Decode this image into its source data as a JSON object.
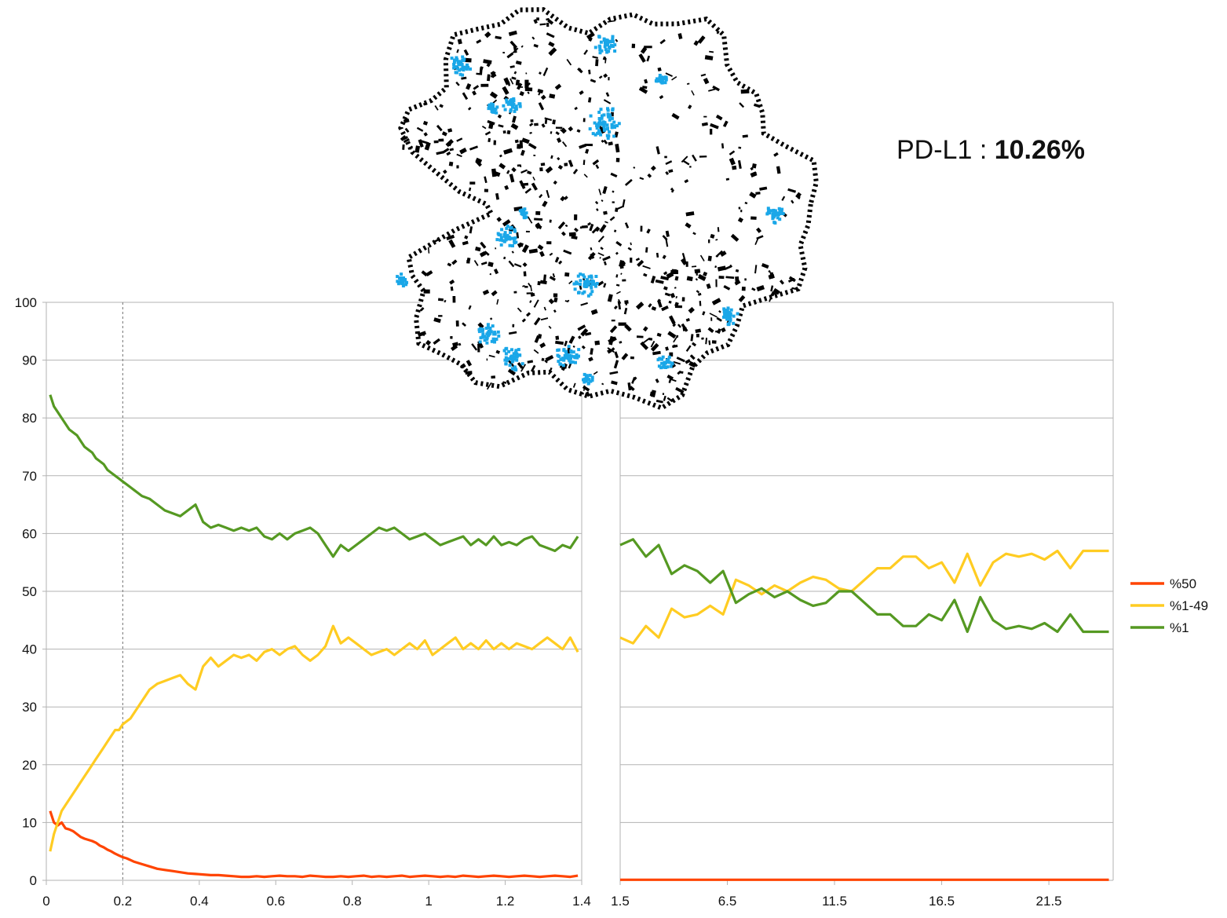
{
  "annotation": {
    "label": "PD-L1 :",
    "value": "10.26%"
  },
  "image": {
    "subject": "tissue-section-thumbnail",
    "colors": {
      "tissue": "#000000",
      "positive": "#1aa7e8"
    }
  },
  "colors": {
    "p50": "#ff4400",
    "p1_49": "#ffcc22",
    "p1": "#559922",
    "grid": "#b3b3b3",
    "axis": "#b3b3b3",
    "refline": "#888888"
  },
  "legend": {
    "placement": "right",
    "items": [
      "%50",
      "%1-49",
      "%1"
    ]
  },
  "chart_data": [
    {
      "type": "line",
      "panel": "left",
      "grid": true,
      "xlim": [
        0,
        1.4
      ],
      "ylim": [
        0,
        100
      ],
      "xticks": [
        "0",
        "0.2",
        "0.4",
        "0.6",
        "0.8",
        "1",
        "1.2",
        "1.4"
      ],
      "xtick_values": [
        0,
        0.2,
        0.4,
        0.6,
        0.8,
        1,
        1.2,
        1.4
      ],
      "yticks": [
        "0",
        "10",
        "20",
        "30",
        "40",
        "50",
        "60",
        "70",
        "80",
        "90",
        "100"
      ],
      "ytick_values": [
        0,
        10,
        20,
        30,
        40,
        50,
        60,
        70,
        80,
        90,
        100
      ],
      "reference_line_x": 0.2,
      "x": [
        0.01,
        0.02,
        0.03,
        0.04,
        0.05,
        0.06,
        0.07,
        0.08,
        0.09,
        0.1,
        0.11,
        0.12,
        0.13,
        0.14,
        0.15,
        0.16,
        0.17,
        0.18,
        0.19,
        0.2,
        0.21,
        0.22,
        0.23,
        0.24,
        0.25,
        0.27,
        0.29,
        0.31,
        0.33,
        0.35,
        0.37,
        0.39,
        0.41,
        0.43,
        0.45,
        0.47,
        0.49,
        0.51,
        0.53,
        0.55,
        0.57,
        0.59,
        0.61,
        0.63,
        0.65,
        0.67,
        0.69,
        0.71,
        0.73,
        0.75,
        0.77,
        0.79,
        0.81,
        0.83,
        0.85,
        0.87,
        0.89,
        0.91,
        0.93,
        0.95,
        0.97,
        0.99,
        1.01,
        1.03,
        1.05,
        1.07,
        1.09,
        1.11,
        1.13,
        1.15,
        1.17,
        1.19,
        1.21,
        1.23,
        1.25,
        1.27,
        1.29,
        1.31,
        1.33,
        1.35,
        1.37,
        1.39
      ],
      "series": [
        {
          "name": "%50",
          "color": "#ff4400",
          "values": [
            12,
            10,
            9.5,
            10,
            9,
            8.8,
            8.5,
            8,
            7.5,
            7.2,
            7,
            6.8,
            6.5,
            6,
            5.7,
            5.3,
            5,
            4.6,
            4.3,
            4,
            3.8,
            3.5,
            3.2,
            3,
            2.8,
            2.4,
            2,
            1.8,
            1.6,
            1.4,
            1.2,
            1.1,
            1,
            0.9,
            0.9,
            0.8,
            0.7,
            0.6,
            0.6,
            0.7,
            0.6,
            0.7,
            0.8,
            0.7,
            0.7,
            0.6,
            0.8,
            0.7,
            0.6,
            0.6,
            0.7,
            0.6,
            0.7,
            0.8,
            0.6,
            0.7,
            0.6,
            0.7,
            0.8,
            0.6,
            0.7,
            0.8,
            0.7,
            0.6,
            0.7,
            0.6,
            0.8,
            0.7,
            0.6,
            0.7,
            0.8,
            0.7,
            0.6,
            0.7,
            0.8,
            0.7,
            0.6,
            0.7,
            0.8,
            0.7,
            0.6,
            0.8
          ]
        },
        {
          "name": "%1-49",
          "color": "#ffcc22",
          "values": [
            5,
            8,
            10,
            12,
            13,
            14,
            15,
            16,
            17,
            18,
            19,
            20,
            21,
            22,
            23,
            24,
            25,
            26,
            26,
            27,
            27.5,
            28,
            29,
            30,
            31,
            33,
            34,
            34.5,
            35,
            35.5,
            34,
            33,
            37,
            38.5,
            37,
            38,
            39,
            38.5,
            39,
            38,
            39.5,
            40,
            39,
            40,
            40.5,
            39,
            38,
            39,
            40.5,
            44,
            41,
            42,
            41,
            40,
            39,
            39.5,
            40,
            39,
            40,
            41,
            40,
            41.5,
            39,
            40,
            41,
            42,
            40,
            41,
            40,
            41.5,
            40,
            41,
            40,
            41,
            40.5,
            40,
            41,
            42,
            41,
            40,
            42,
            39.5
          ]
        },
        {
          "name": "%1",
          "color": "#559922",
          "values": [
            84,
            82,
            81,
            80,
            79,
            78,
            77.5,
            77,
            76,
            75,
            74.5,
            74,
            73,
            72.5,
            72,
            71,
            70.5,
            70,
            69.5,
            69,
            68.5,
            68,
            67.5,
            67,
            66.5,
            66,
            65,
            64,
            63.5,
            63,
            64,
            65,
            62,
            61,
            61.5,
            61,
            60.5,
            61,
            60.5,
            61,
            59.5,
            59,
            60,
            59,
            60,
            60.5,
            61,
            60,
            58,
            56,
            58,
            57,
            58,
            59,
            60,
            61,
            60.5,
            61,
            60,
            59,
            59.5,
            60,
            59,
            58,
            58.5,
            59,
            59.5,
            58,
            59,
            58,
            59.5,
            58,
            58.5,
            58,
            59,
            59.5,
            58,
            57.5,
            57,
            58,
            57.5,
            59.5
          ]
        }
      ]
    },
    {
      "type": "line",
      "panel": "right",
      "grid": true,
      "xlim": [
        1.5,
        24.5
      ],
      "ylim": [
        0,
        100
      ],
      "xticks": [
        "1.5",
        "6.5",
        "11.5",
        "16.5",
        "21.5"
      ],
      "xtick_values": [
        1.5,
        6.5,
        11.5,
        16.5,
        21.5
      ],
      "x": [
        1.5,
        2.1,
        2.7,
        3.3,
        3.9,
        4.5,
        5.1,
        5.7,
        6.3,
        6.9,
        7.5,
        8.1,
        8.7,
        9.3,
        9.9,
        10.5,
        11.1,
        11.7,
        12.3,
        12.9,
        13.5,
        14.1,
        14.7,
        15.3,
        15.9,
        16.5,
        17.1,
        17.7,
        18.3,
        18.9,
        19.5,
        20.1,
        20.7,
        21.3,
        21.9,
        22.5,
        23.1,
        23.7,
        24.3
      ],
      "series": [
        {
          "name": "%50",
          "color": "#ff4400",
          "values": [
            0.1,
            0.1,
            0.1,
            0.1,
            0.1,
            0.1,
            0.1,
            0.1,
            0.1,
            0.1,
            0.1,
            0.1,
            0.1,
            0.1,
            0.1,
            0.1,
            0.1,
            0.1,
            0.1,
            0.1,
            0.1,
            0.1,
            0.1,
            0.1,
            0.1,
            0.1,
            0.1,
            0.1,
            0.1,
            0.1,
            0.1,
            0.1,
            0.1,
            0.1,
            0.1,
            0.1,
            0.1,
            0.1,
            0.1
          ]
        },
        {
          "name": "%1-49",
          "color": "#ffcc22",
          "values": [
            42,
            41,
            44,
            42,
            47,
            45.5,
            46,
            47.5,
            46,
            52,
            51,
            49.5,
            51,
            50,
            51.5,
            52.5,
            52,
            50.5,
            50,
            52,
            54,
            54,
            56,
            56,
            54,
            55,
            51.5,
            56.5,
            51,
            55,
            56.5,
            56,
            56.5,
            55.5,
            57,
            54,
            57,
            57,
            57
          ]
        },
        {
          "name": "%1",
          "color": "#559922",
          "values": [
            58,
            59,
            56,
            58,
            53,
            54.5,
            53.5,
            51.5,
            53.5,
            48,
            49.5,
            50.5,
            49,
            50,
            48.5,
            47.5,
            48,
            50,
            50,
            48,
            46,
            46,
            44,
            44,
            46,
            45,
            48.5,
            43,
            49,
            45,
            43.5,
            44,
            43.5,
            44.5,
            43,
            46,
            43,
            43,
            43
          ]
        }
      ]
    }
  ]
}
